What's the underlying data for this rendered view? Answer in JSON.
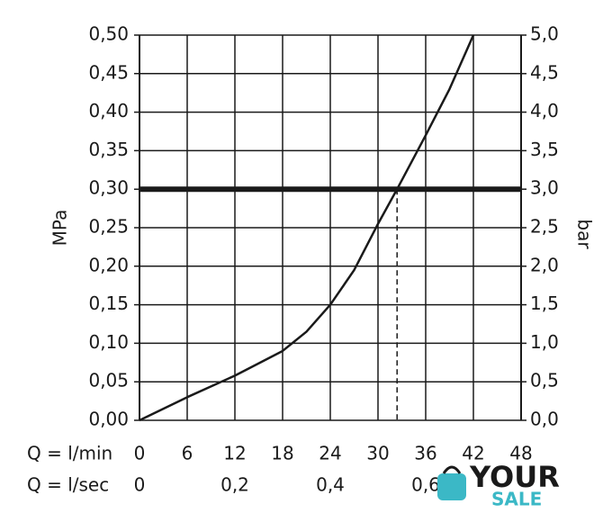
{
  "chart_data": {
    "type": "line",
    "xlabel": "Q = l/min",
    "x2label": "Q = l/sec",
    "ylabel": "MPa",
    "y2label": "bar",
    "xlim": [
      0,
      48
    ],
    "xticks": [
      0,
      6,
      12,
      18,
      24,
      30,
      36,
      42,
      48
    ],
    "x2lim": [
      0,
      0.8
    ],
    "x2ticks": [
      {
        "value": 0,
        "label": "0"
      },
      {
        "value": 0.2,
        "label": "0,2"
      },
      {
        "value": 0.4,
        "label": "0,4"
      },
      {
        "value": 0.6,
        "label": "0,6"
      }
    ],
    "ylim": [
      0,
      0.5
    ],
    "yticks": [
      {
        "value": 0,
        "label": "0,00"
      },
      {
        "value": 0.05,
        "label": "0,05"
      },
      {
        "value": 0.1,
        "label": "0,10"
      },
      {
        "value": 0.15,
        "label": "0,15"
      },
      {
        "value": 0.2,
        "label": "0,20"
      },
      {
        "value": 0.25,
        "label": "0,25"
      },
      {
        "value": 0.3,
        "label": "0,30"
      },
      {
        "value": 0.35,
        "label": "0,35"
      },
      {
        "value": 0.4,
        "label": "0,40"
      },
      {
        "value": 0.45,
        "label": "0,45"
      },
      {
        "value": 0.5,
        "label": "0,50"
      }
    ],
    "y2lim": [
      0,
      5
    ],
    "y2ticks": [
      {
        "value": 0,
        "label": "0,0"
      },
      {
        "value": 0.5,
        "label": "0,5"
      },
      {
        "value": 1,
        "label": "1,0"
      },
      {
        "value": 1.5,
        "label": "1,5"
      },
      {
        "value": 2,
        "label": "2,0"
      },
      {
        "value": 2.5,
        "label": "2,5"
      },
      {
        "value": 3,
        "label": "3,0"
      },
      {
        "value": 3.5,
        "label": "3,5"
      },
      {
        "value": 4,
        "label": "4,0"
      },
      {
        "value": 4.5,
        "label": "4,5"
      },
      {
        "value": 5,
        "label": "5,0"
      }
    ],
    "grid": true,
    "hline": 0.3,
    "vline": 32.4,
    "series": [
      {
        "color": "#1a1a1a",
        "x": [
          0,
          6,
          12,
          18,
          21,
          24,
          27,
          30,
          32.4,
          36,
          39,
          42
        ],
        "values": [
          0,
          0.03,
          0.058,
          0.09,
          0.115,
          0.15,
          0.195,
          0.255,
          0.3,
          0.37,
          0.43,
          0.5
        ]
      }
    ]
  },
  "watermark": {
    "line1": "YOUR",
    "line2": "SALE"
  }
}
